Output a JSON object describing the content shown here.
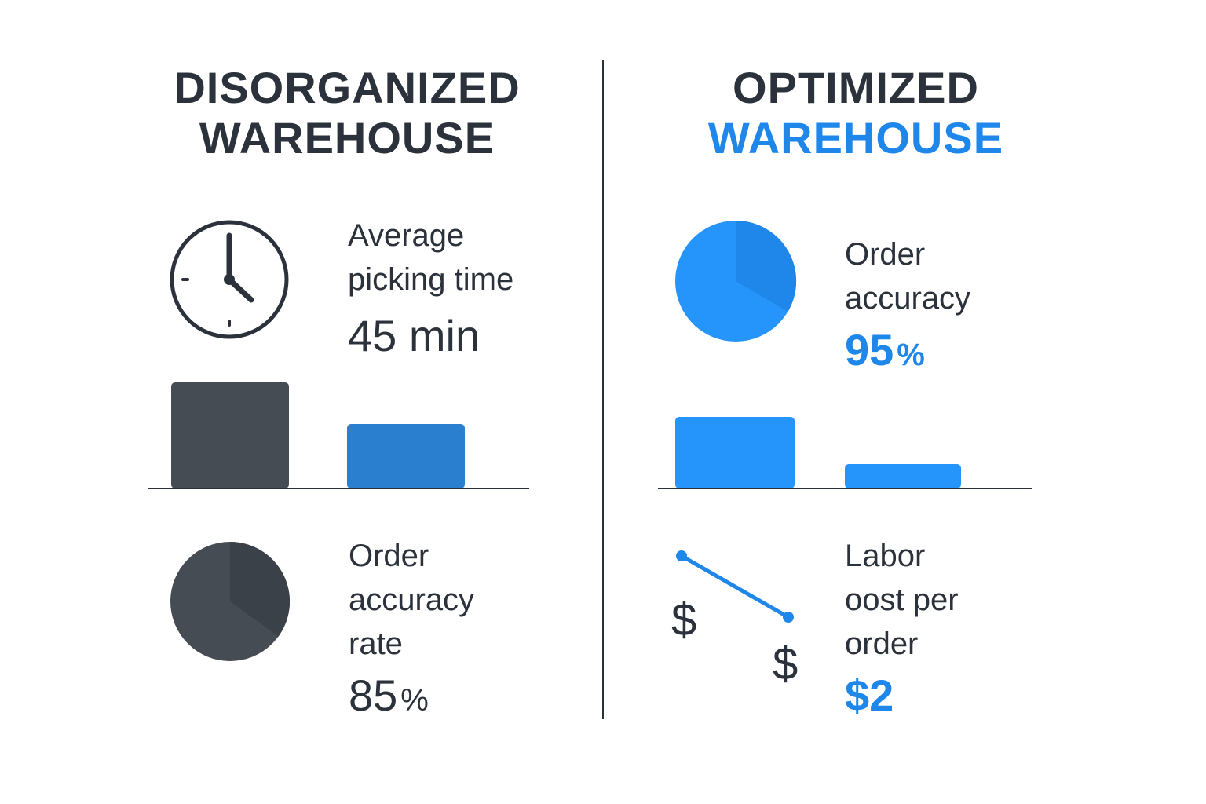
{
  "left": {
    "title_line1": "DISORGANIZED",
    "title_line2": "WAREHOUSE",
    "picking": {
      "label_line1": "Average",
      "label_line2": "picking time",
      "value": "45 min"
    },
    "accuracy": {
      "label_line1": "Order",
      "label_line2": "accuracy",
      "label_line3": "rate",
      "value": "85",
      "unit": "%"
    }
  },
  "right": {
    "title_line1": "OPTIMIZED",
    "title_line2": "WAREHOUSE",
    "accuracy": {
      "label_line1": "Order",
      "label_line2": "accuracy",
      "value": "95",
      "unit": "%"
    },
    "labor": {
      "label_line1": "Labor",
      "label_line2": "oost per",
      "label_line3": "order",
      "value": "$2",
      "dollar_symbol": "$"
    }
  },
  "colors": {
    "dark": "#2b323b",
    "dark_fill": "#464c53",
    "blue": "#1f86ea",
    "blue_bright": "#2594fb",
    "blue_mid": "#2a80cf"
  }
}
